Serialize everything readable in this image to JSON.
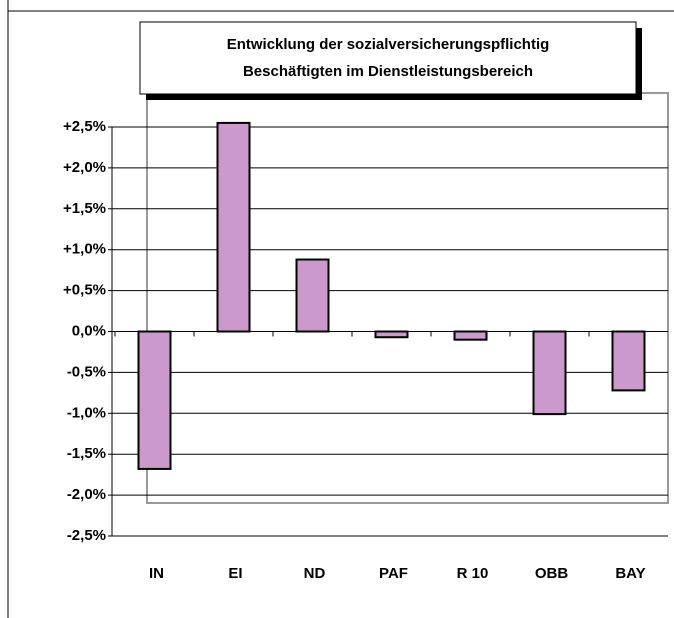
{
  "chart_data": {
    "type": "bar",
    "title": "Entwicklung der sozialversicherungspflichtig Beschäftigten im Dienstleistungsbereich",
    "categories": [
      "IN",
      "EI",
      "ND",
      "PAF",
      "R 10",
      "OBB",
      "BAY"
    ],
    "values": [
      -1.68,
      2.55,
      0.88,
      -0.07,
      -0.1,
      -1.01,
      -0.72
    ],
    "color": "#cc99cc",
    "ylim": [
      -2.5,
      2.5
    ],
    "yticks": [
      {
        "value": -2.5,
        "label": "-2,5%"
      },
      {
        "value": -2.0,
        "label": "-2,0%"
      },
      {
        "value": -1.5,
        "label": "-1,5%"
      },
      {
        "value": -1.0,
        "label": "-1,0%"
      },
      {
        "value": -0.5,
        "label": "-0,5%"
      },
      {
        "value": 0,
        "label": "0,0%"
      },
      {
        "value": 0.5,
        "label": "+0,5%"
      },
      {
        "value": 1.0,
        "label": "+1,0%"
      },
      {
        "value": 1.5,
        "label": "+1,5%"
      },
      {
        "value": 2.0,
        "label": "+2,0%"
      },
      {
        "value": 2.5,
        "label": "+2,5%"
      }
    ],
    "grid": true
  }
}
